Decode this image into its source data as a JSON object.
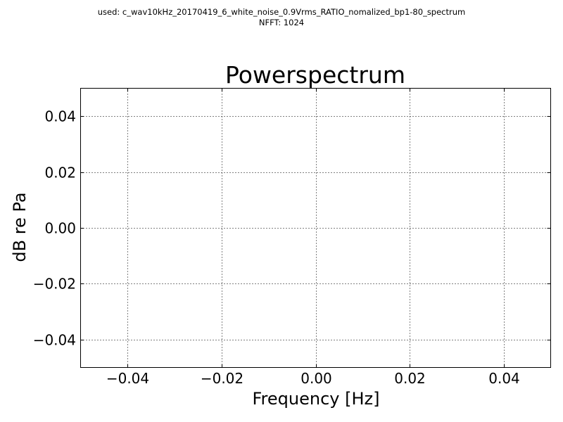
{
  "header": {
    "used_line": "used: c_wav10kHz_20170419_6_white_noise_0.9Vrms_RATIO_nomalized_bp1-80_spectrum",
    "nfft_line": "NFFT: 1024"
  },
  "chart_data": {
    "type": "line",
    "title": "Powerspectrum",
    "xlabel": "Frequency [Hz]",
    "ylabel": "dB re Pa",
    "xlim": [
      -0.05,
      0.05
    ],
    "ylim": [
      -0.05,
      0.05
    ],
    "xticks": [
      -0.04,
      -0.02,
      0.0,
      0.02,
      0.04
    ],
    "yticks": [
      -0.04,
      -0.02,
      0.0,
      0.02,
      0.04
    ],
    "xtick_labels": [
      "−0.04",
      "−0.02",
      "0.00",
      "0.02",
      "0.04"
    ],
    "ytick_labels": [
      "−0.04",
      "−0.02",
      "0.00",
      "0.02",
      "0.04"
    ],
    "grid": true,
    "series": []
  }
}
